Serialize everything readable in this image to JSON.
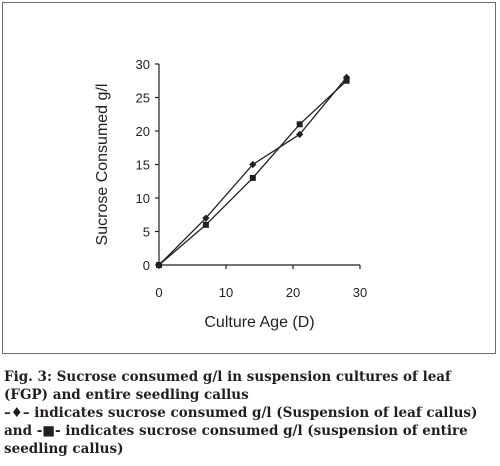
{
  "chart_data": {
    "type": "line",
    "xlabel": "Culture Age (D)",
    "ylabel": "Sucrose Consumed g/l",
    "xlim": [
      0,
      30
    ],
    "ylim": [
      0,
      30
    ],
    "xticks": [
      0,
      10,
      20,
      30
    ],
    "yticks": [
      0,
      5,
      10,
      15,
      20,
      25,
      30
    ],
    "grid": false,
    "legend": "none",
    "series": [
      {
        "marker": "diamond",
        "x": [
          0,
          7,
          14,
          21,
          28
        ],
        "values": [
          0,
          7,
          15,
          19.5,
          28
        ]
      },
      {
        "marker": "square",
        "x": [
          0,
          7,
          14,
          21,
          28
        ],
        "values": [
          0,
          6,
          13,
          21,
          27.5
        ]
      }
    ]
  },
  "caption": {
    "line1": "Fig. 3: Sucrose consumed g/l in suspension cultures of leaf (FGP) and entire seedling callus",
    "line2": "–♦– indicates sucrose consumed g/l (Suspension of leaf callus) and -■- indicates sucrose consumed g/l (suspension of entire seedling callus)"
  }
}
